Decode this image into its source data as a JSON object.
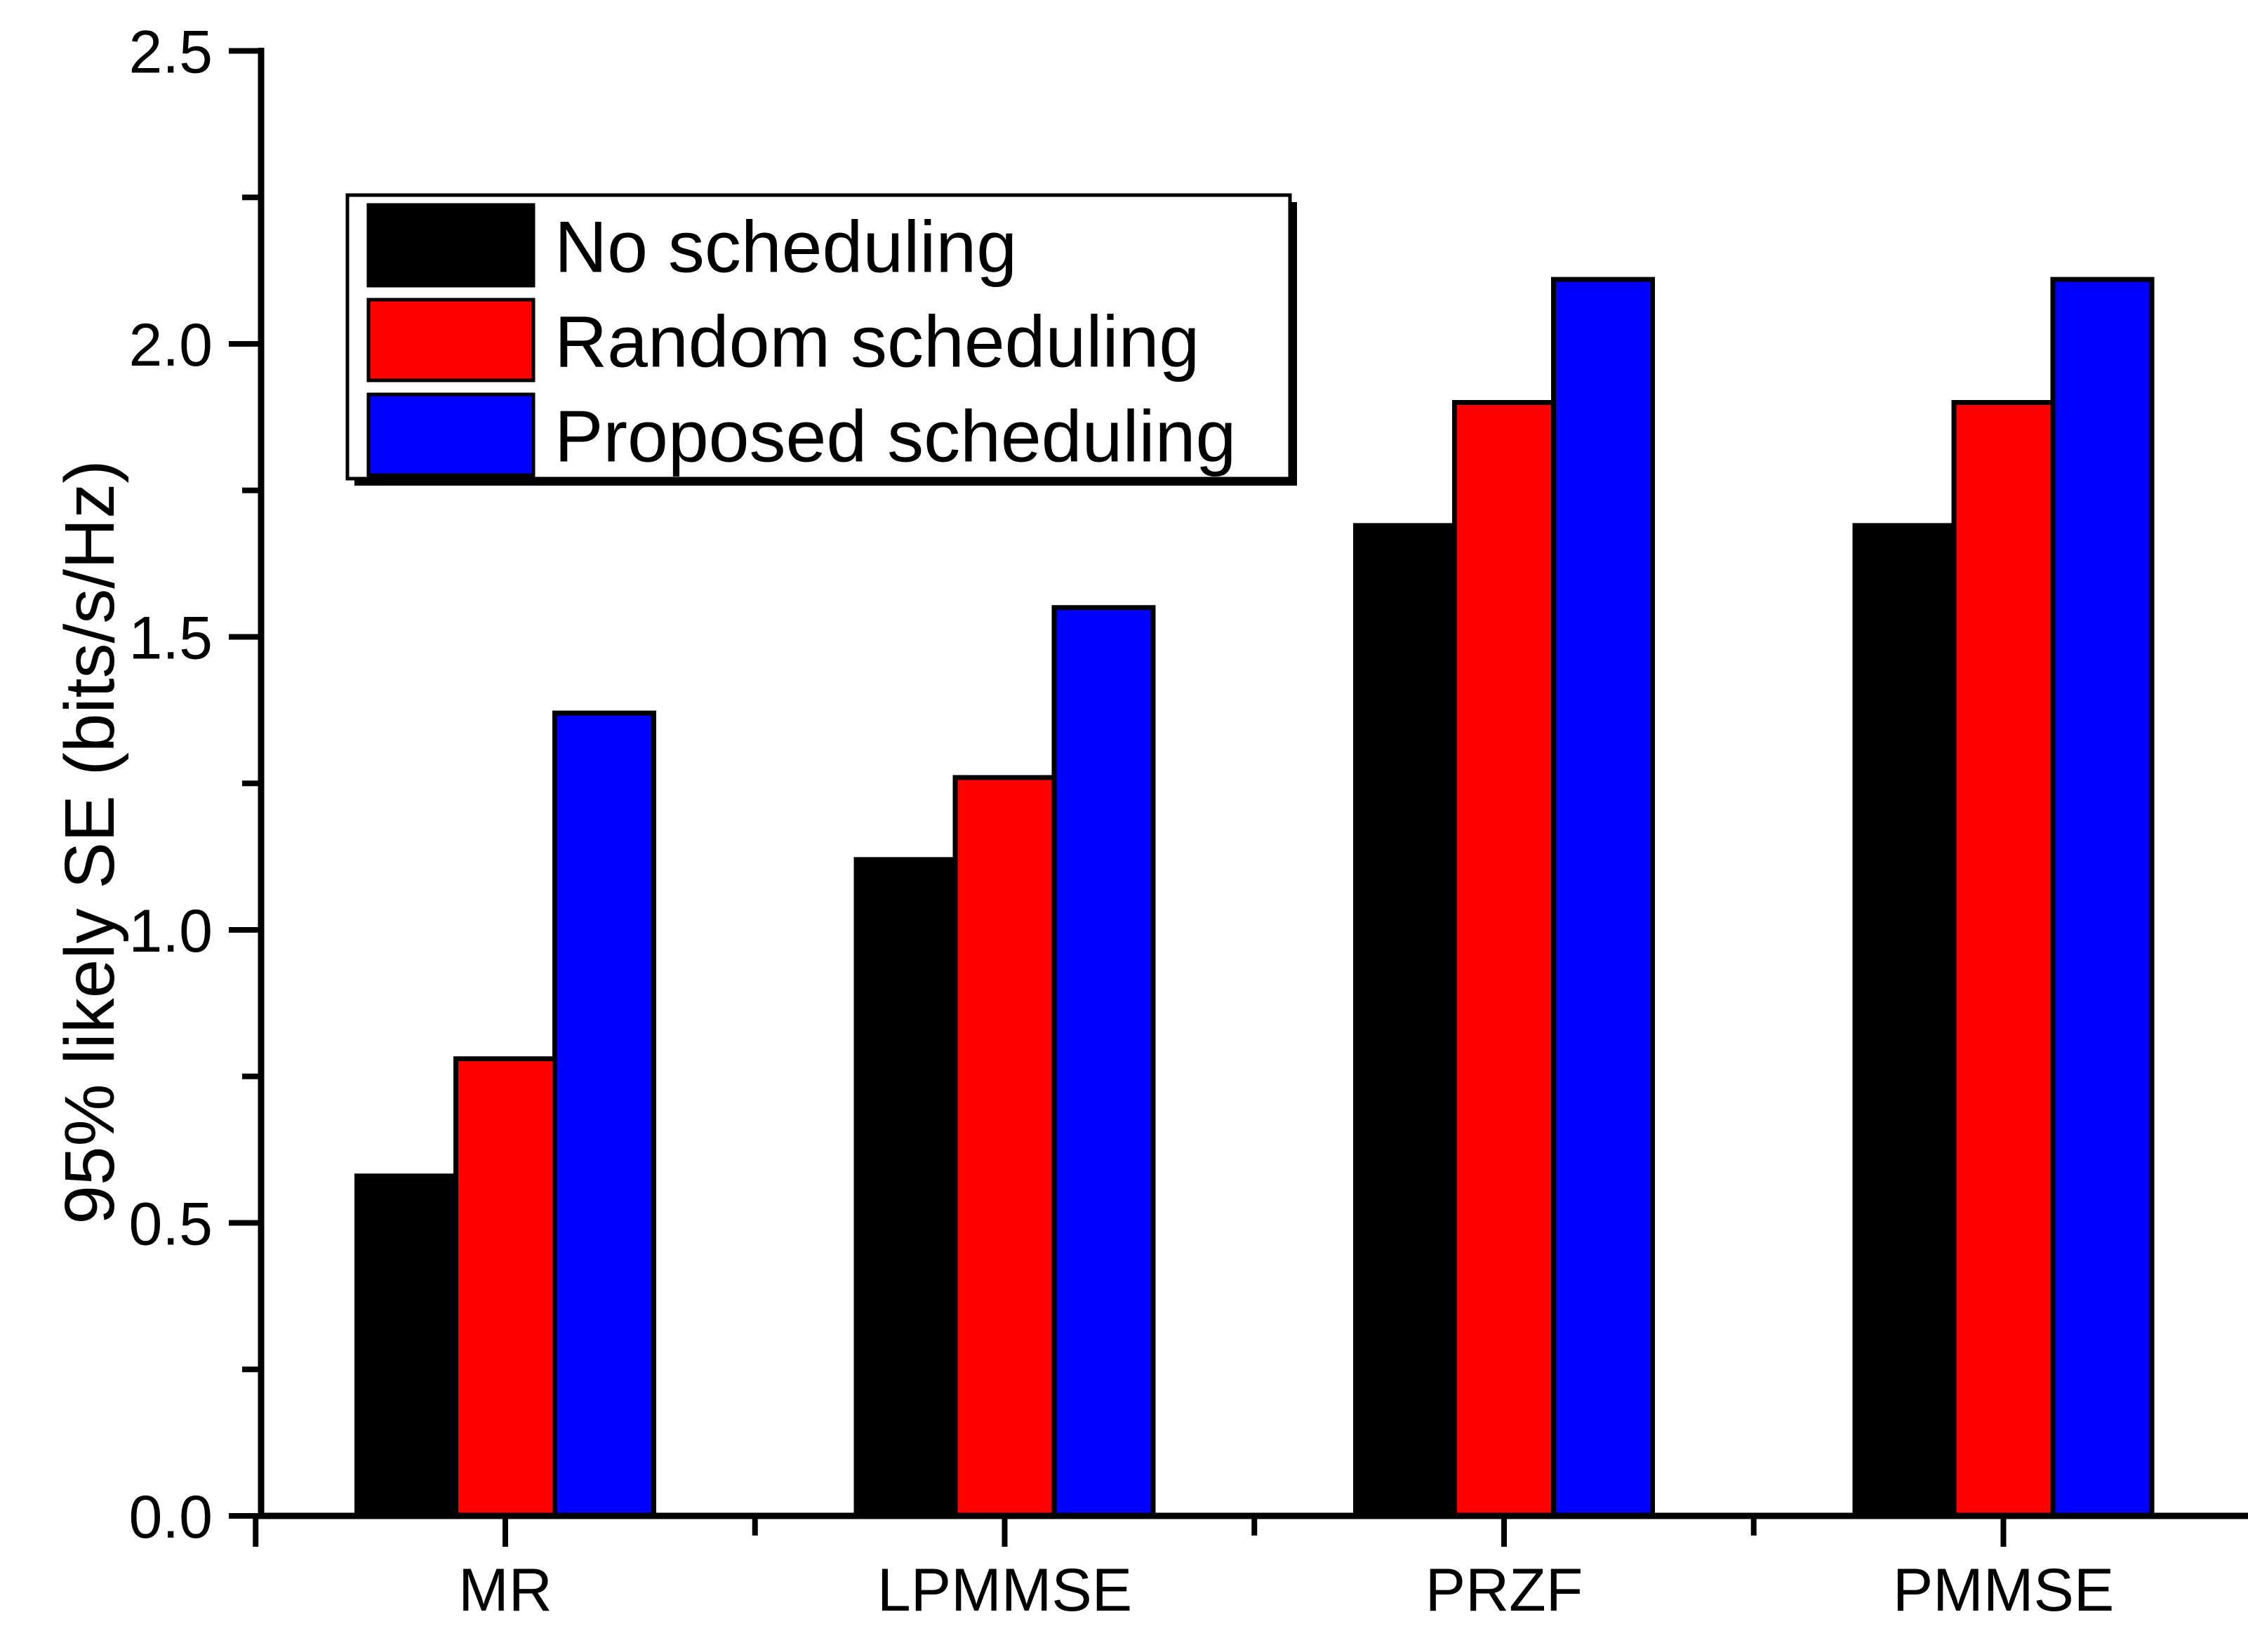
{
  "figure": {
    "background": "#ffffff",
    "axis_color": "#000000",
    "text_color": "#000000"
  },
  "chart_data": {
    "type": "bar",
    "title": "",
    "categories": [
      "MR",
      "LPMMSE",
      "PRZF",
      "PMMSE"
    ],
    "series": [
      {
        "name": "No scheduling",
        "color": "#000000",
        "values": [
          0.58,
          1.12,
          1.69,
          1.69
        ]
      },
      {
        "name": "Random scheduling",
        "color": "#ff0000",
        "values": [
          0.78,
          1.26,
          1.9,
          1.9
        ]
      },
      {
        "name": "Proposed scheduling",
        "color": "#0000ff",
        "values": [
          1.37,
          1.55,
          2.11,
          2.11
        ]
      }
    ],
    "xlabel": "",
    "ylabel": "95% likely SE (bits/s/Hz)",
    "ylim": [
      0.0,
      2.5
    ],
    "ytick_step_major": 0.5,
    "ytick_step_minor": 0.25,
    "ytick_labels": [
      "0.0",
      "0.5",
      "1.0",
      "1.5",
      "2.0",
      "2.5"
    ],
    "grid": false,
    "legend_position": "upper-left",
    "bar_outline_color": "#000000"
  }
}
